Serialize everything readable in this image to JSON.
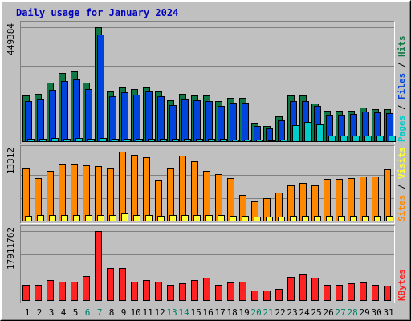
{
  "chart_data": {
    "type": "bar",
    "title": "Daily usage for January 2024",
    "days": [
      "1",
      "2",
      "3",
      "4",
      "5",
      "6",
      "7",
      "8",
      "9",
      "10",
      "11",
      "12",
      "13",
      "14",
      "15",
      "16",
      "17",
      "18",
      "19",
      "20",
      "21",
      "22",
      "23",
      "24",
      "25",
      "26",
      "27",
      "28",
      "29",
      "30",
      "31"
    ],
    "weekend_days": [
      "6",
      "7",
      "13",
      "14",
      "20",
      "21",
      "27",
      "28"
    ],
    "panels": [
      {
        "id": "hits",
        "max_label": "449384",
        "ylim": [
          0,
          449384
        ],
        "legend": [
          {
            "label": "Pages",
            "color": "#00cccc"
          },
          {
            "label": "Files",
            "color": "#0044dd"
          },
          {
            "label": "Hits",
            "color": "#117744"
          }
        ],
        "series": [
          {
            "name": "Hits",
            "color": "#117744",
            "values": [
              181000,
              189000,
              231000,
              270000,
              276000,
              232000,
              449384,
              198000,
              213000,
              207000,
              213000,
              199000,
              164000,
              189000,
              181000,
              181000,
              160000,
              172000,
              172000,
              76000,
              64000,
              99000,
              181000,
              181000,
              152000,
              121000,
              121000,
              124000,
              134000,
              128000,
              128000
            ]
          },
          {
            "name": "Files",
            "color": "#0044dd",
            "values": [
              160000,
              170000,
              205000,
              240000,
              245000,
              208000,
              420000,
              178000,
              194000,
              185000,
              198000,
              180000,
              146000,
              170000,
              163000,
              160000,
              140000,
              155000,
              155000,
              63000,
              52000,
              84000,
              160000,
              160000,
              142000,
              108000,
              108000,
              110000,
              118000,
              115000,
              112000
            ]
          },
          {
            "name": "Pages",
            "color": "#00cccc",
            "values": [
              14000,
              13000,
              15000,
              14000,
              15000,
              13000,
              15000,
              14000,
              13000,
              14000,
              13000,
              12000,
              11000,
              12000,
              11000,
              11000,
              11000,
              10000,
              10000,
              8000,
              7000,
              9000,
              66000,
              78000,
              70000,
              24000,
              25000,
              25000,
              25000,
              24000,
              24000
            ]
          }
        ]
      },
      {
        "id": "visits",
        "max_label": "13312",
        "ylim": [
          0,
          13312
        ],
        "legend": [
          {
            "label": "Sites",
            "color": "#ff8800"
          },
          {
            "label": "Visits",
            "color": "#ffff33"
          }
        ],
        "series": [
          {
            "name": "Visits",
            "color": "#ff8800",
            "values": [
              10200,
              8200,
              9700,
              11000,
              11000,
              10700,
              10600,
              10300,
              13312,
              12700,
              12200,
              8000,
              10200,
              12500,
              11400,
              9700,
              9000,
              8300,
              5000,
              3800,
              4500,
              5500,
              6900,
              7300,
              6900,
              8100,
              8100,
              8200,
              8600,
              8600,
              9900
            ]
          },
          {
            "name": "Sites",
            "color": "#ffff33",
            "values": [
              1100,
              1200,
              1200,
              1200,
              1200,
              1200,
              1200,
              1200,
              1600,
              1300,
              1300,
              1100,
              1200,
              1300,
              1300,
              1200,
              1200,
              1100,
              1000,
              900,
              900,
              900,
              1000,
              1100,
              1100,
              1100,
              1100,
              1100,
              1100,
              1100,
              1100
            ]
          }
        ]
      },
      {
        "id": "kbytes",
        "max_label": "17911762",
        "ylim": [
          0,
          17911762
        ],
        "legend": [
          {
            "label": "KBytes",
            "color": "#ff2222"
          }
        ],
        "series": [
          {
            "name": "KBytes",
            "color": "#ff2222",
            "values": [
              4200000,
              4200000,
              5300000,
              5000000,
              5000000,
              6300000,
              17911762,
              8500000,
              8500000,
              5000000,
              5300000,
              5000000,
              4200000,
              4500000,
              5300000,
              5900000,
              4200000,
              4800000,
              5000000,
              2700000,
              2700000,
              3100000,
              6100000,
              6800000,
              5900000,
              4200000,
              4200000,
              4500000,
              4800000,
              4200000,
              3900000
            ]
          }
        ]
      }
    ]
  }
}
